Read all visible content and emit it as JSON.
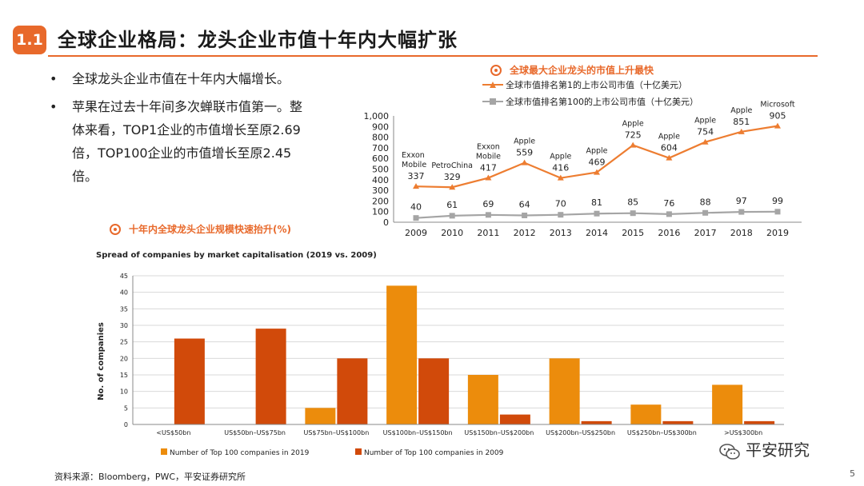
{
  "header": {
    "section_number": "1.1",
    "title": "全球企业格局：龙头企业市值十年内大幅扩张"
  },
  "bullets": [
    {
      "text": "全球龙头企业市值在十年内大幅增长。"
    },
    {
      "text": "苹果在过去十年间多次蝉联市值第一。整体来看，TOP1企业的市值增长至原2.69倍，TOP100企业的市值增长至原2.45倍。"
    }
  ],
  "bullet_glyph": "•",
  "line_chart_heading": "全球最大企业龙头的市值上升最快",
  "bar_chart_heading": "十年内全球龙头企业规模快速抬升(%)",
  "source": "资料来源：Bloomberg，PWC，平安证券研究所",
  "page_number": "5",
  "brand": "平安研究",
  "colors": {
    "accent": "#e8692b",
    "top1_line": "#ed7d31",
    "top100_line": "#a5a5a5",
    "bar_2019": "#ec8c0c",
    "bar_2009": "#d14a0a"
  },
  "chart_data": [
    {
      "type": "line",
      "title": "全球最大企业龙头的市值上升最快",
      "x": [
        "2009",
        "2010",
        "2011",
        "2012",
        "2013",
        "2014",
        "2015",
        "2016",
        "2017",
        "2018",
        "2019"
      ],
      "ylim": [
        0,
        1000
      ],
      "yticks": [
        "0",
        "100",
        "200",
        "300",
        "400",
        "500",
        "600",
        "700",
        "800",
        "900",
        "1,000"
      ],
      "series": [
        {
          "name": "全球市值排名第1的上市公司市值（十亿美元）",
          "values": [
            337,
            329,
            417,
            559,
            416,
            469,
            725,
            604,
            754,
            851,
            905
          ]
        },
        {
          "name": "全球市值排名第100的上市公司市值（十亿美元）",
          "values": [
            40,
            61,
            69,
            64,
            70,
            81,
            85,
            76,
            88,
            97,
            99
          ]
        }
      ],
      "top1_data_labels": [
        "337",
        "329",
        "417",
        "559",
        "416",
        "469",
        "725",
        "604",
        "754",
        "851",
        "905"
      ],
      "top100_data_labels": [
        "40",
        "61",
        "69",
        "64",
        "70",
        "81",
        "85",
        "76",
        "88",
        "97",
        "99"
      ],
      "company_annotations": [
        {
          "year": "2009",
          "lines": [
            "Exxon",
            "Mobile"
          ]
        },
        {
          "year": "2010",
          "lines": [
            "PetroChina"
          ]
        },
        {
          "year": "2011",
          "lines": [
            "Exxon",
            "Mobile"
          ]
        },
        {
          "year": "2012",
          "lines": [
            "Apple"
          ]
        },
        {
          "year": "2013",
          "lines": [
            "Apple"
          ]
        },
        {
          "year": "2014",
          "lines": [
            "Apple"
          ]
        },
        {
          "year": "2015",
          "lines": [
            "Apple"
          ]
        },
        {
          "year": "2016",
          "lines": [
            "Apple"
          ]
        },
        {
          "year": "2017",
          "lines": [
            "Apple"
          ]
        },
        {
          "year": "2018",
          "lines": [
            "Apple"
          ]
        },
        {
          "year": "2019",
          "lines": [
            "Microsoft"
          ]
        }
      ]
    },
    {
      "type": "bar",
      "title": "Spread of companies by market capitalisation (2019 vs. 2009)",
      "ylabel": "No. of companies",
      "ylim": [
        0,
        45
      ],
      "yticks": [
        "0",
        "5",
        "10",
        "15",
        "20",
        "25",
        "30",
        "35",
        "40",
        "45"
      ],
      "categories": [
        "<US$50bn",
        "US$50bn–US$75bn",
        "US$75bn–US$100bn",
        "US$100bn–US$150bn",
        "US$150bn–US$200bn",
        "US$200bn–US$250bn",
        "US$250bn–US$300bn",
        ">US$300bn"
      ],
      "series": [
        {
          "name": "Number of Top 100 companies in 2019",
          "values": [
            0,
            0,
            5,
            42,
            15,
            20,
            6,
            12
          ]
        },
        {
          "name": "Number of Top 100 companies in 2009",
          "values": [
            26,
            29,
            20,
            20,
            3,
            1,
            1,
            1
          ]
        }
      ],
      "legend_position": "bottom"
    }
  ]
}
